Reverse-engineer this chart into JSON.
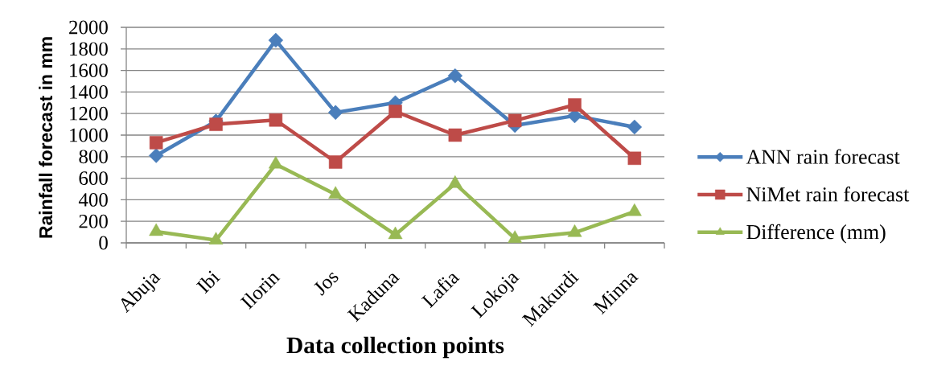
{
  "chart_data": {
    "type": "line",
    "xlabel": "Data collection points",
    "ylabel": "Rainfall forecast in mm",
    "categories": [
      "Abuja",
      "Ibi",
      "Ilorin",
      "Jos",
      "Kaduna",
      "Lafia",
      "Lokoja",
      "Makurdi",
      "Minna"
    ],
    "series": [
      {
        "name": "ANN rain forecast",
        "color": "#4a7ebb",
        "marker": "diamond",
        "values": [
          810,
          1130,
          1880,
          1210,
          1300,
          1550,
          1090,
          1180,
          1075
        ]
      },
      {
        "name": "NiMet rain forecast",
        "color": "#be4b48",
        "marker": "square",
        "values": [
          930,
          1100,
          1140,
          750,
          1220,
          1000,
          1135,
          1280,
          785
        ]
      },
      {
        "name": "Difference (mm)",
        "color": "#98b954",
        "marker": "triangle",
        "values": [
          105,
          25,
          730,
          450,
          75,
          550,
          40,
          95,
          290
        ]
      }
    ],
    "ylim": [
      0,
      2000
    ],
    "yticks": [
      0,
      200,
      400,
      600,
      800,
      1000,
      1200,
      1400,
      1600,
      1800,
      2000
    ],
    "grid": "y",
    "legend": "right",
    "line_style": "solid"
  }
}
